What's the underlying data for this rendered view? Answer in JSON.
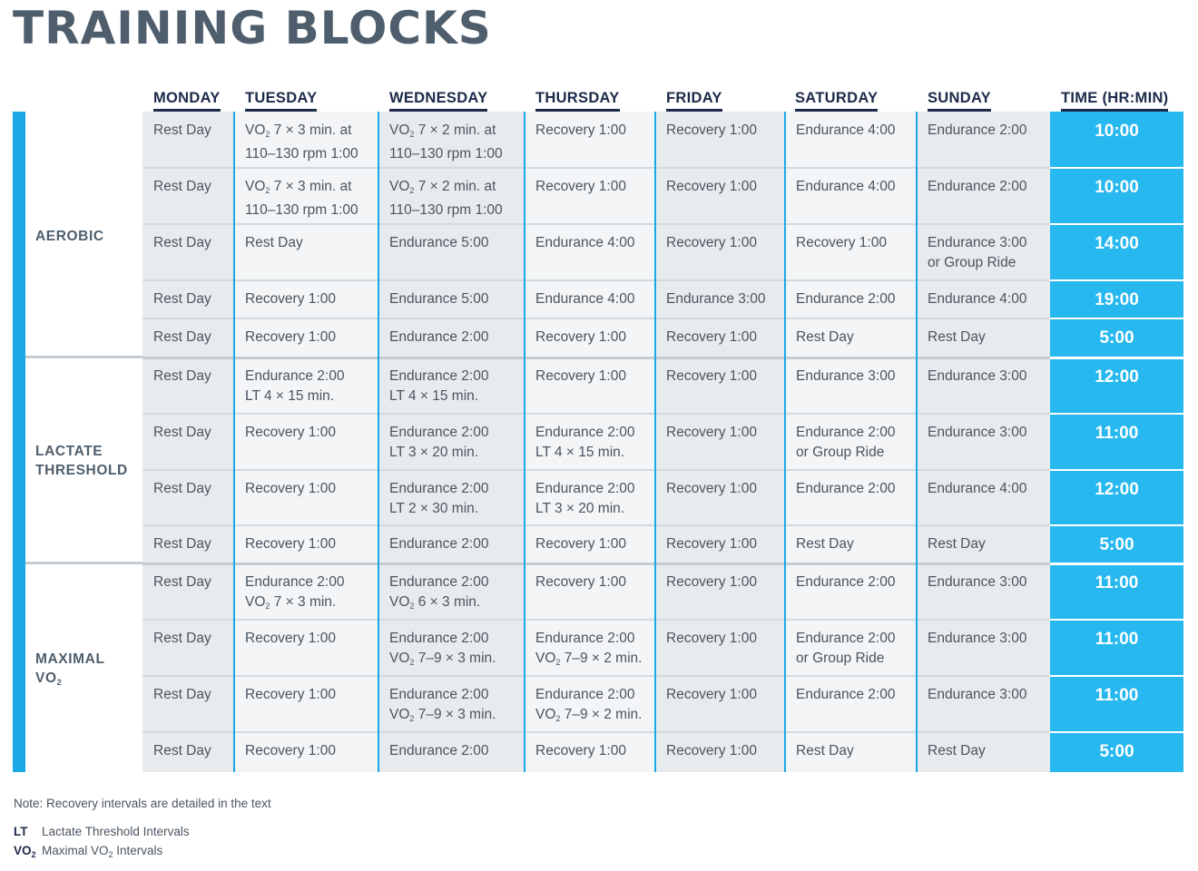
{
  "title": "TRAINING BLOCKS",
  "headers": [
    "MONDAY",
    "TUESDAY",
    "WEDNESDAY",
    "THURSDAY",
    "FRIDAY",
    "SATURDAY",
    "SUNDAY",
    "TIME (HR:MIN)"
  ],
  "blocks": [
    {
      "name": "AEROBIC",
      "rows": [
        0,
        1,
        2,
        3,
        4
      ]
    },
    {
      "name": "LACTATE\nTHRESHOLD",
      "rows": [
        5,
        6,
        7,
        8
      ]
    },
    {
      "name": "MAXIMAL\nVO_2",
      "rows": [
        9,
        10,
        11,
        12
      ]
    }
  ],
  "rows": [
    {
      "cells": [
        "Rest Day",
        "VO_2 7 × 3 min. at\n110–130 rpm 1:00",
        "VO_2 7 × 2 min. at\n110–130 rpm 1:00",
        "Recovery 1:00",
        "Recovery 1:00",
        "Endurance 4:00",
        "Endurance 2:00"
      ],
      "time": "10:00"
    },
    {
      "cells": [
        "Rest Day",
        "VO_2 7 × 3 min. at\n110–130 rpm 1:00",
        "VO_2 7 × 2 min. at\n110–130 rpm 1:00",
        "Recovery 1:00",
        "Recovery 1:00",
        "Endurance 4:00",
        "Endurance 2:00"
      ],
      "time": "10:00"
    },
    {
      "cells": [
        "Rest Day",
        "Rest Day",
        "Endurance 5:00",
        "Endurance 4:00",
        "Recovery 1:00",
        "Recovery 1:00",
        "Endurance 3:00\nor Group Ride"
      ],
      "time": "14:00"
    },
    {
      "cells": [
        "Rest Day",
        "Recovery 1:00",
        "Endurance 5:00",
        "Endurance 4:00",
        "Endurance 3:00",
        "Endurance 2:00",
        "Endurance 4:00"
      ],
      "time": "19:00"
    },
    {
      "cells": [
        "Rest Day",
        "Recovery 1:00",
        "Endurance 2:00",
        "Recovery 1:00",
        "Recovery 1:00",
        "Rest Day",
        "Rest Day"
      ],
      "time": "5:00"
    },
    {
      "cells": [
        "Rest Day",
        "Endurance 2:00\nLT 4 × 15 min.",
        "Endurance 2:00\nLT 4 × 15 min.",
        "Recovery 1:00",
        "Recovery 1:00",
        "Endurance 3:00",
        "Endurance 3:00"
      ],
      "time": "12:00"
    },
    {
      "cells": [
        "Rest Day",
        "Recovery 1:00",
        "Endurance 2:00\nLT 3 × 20 min.",
        "Endurance 2:00\nLT 4 × 15 min.",
        "Recovery 1:00",
        "Endurance 2:00\nor Group Ride",
        "Endurance 3:00"
      ],
      "time": "11:00"
    },
    {
      "cells": [
        "Rest Day",
        "Recovery 1:00",
        "Endurance 2:00\nLT 2 × 30 min.",
        "Endurance 2:00\nLT 3 × 20 min.",
        "Recovery 1:00",
        "Endurance 2:00",
        "Endurance 4:00"
      ],
      "time": "12:00"
    },
    {
      "cells": [
        "Rest Day",
        "Recovery 1:00",
        "Endurance 2:00",
        "Recovery 1:00",
        "Recovery 1:00",
        "Rest Day",
        "Rest Day"
      ],
      "time": "5:00"
    },
    {
      "cells": [
        "Rest Day",
        "Endurance 2:00\nVO_2 7 × 3 min.",
        "Endurance 2:00\nVO_2 6 × 3 min.",
        "Recovery 1:00",
        "Recovery 1:00",
        "Endurance 2:00",
        "Endurance 3:00"
      ],
      "time": "11:00"
    },
    {
      "cells": [
        "Rest Day",
        "Recovery 1:00",
        "Endurance 2:00\nVO_2 7–9 × 3 min.",
        "Endurance 2:00\nVO_2 7–9 × 2 min.",
        "Recovery 1:00",
        "Endurance 2:00\nor Group Ride",
        "Endurance 3:00"
      ],
      "time": "11:00"
    },
    {
      "cells": [
        "Rest Day",
        "Recovery 1:00",
        "Endurance 2:00\nVO_2 7–9 × 3 min.",
        "Endurance 2:00\nVO_2 7–9 × 2 min.",
        "Recovery 1:00",
        "Endurance 2:00",
        "Endurance 3:00"
      ],
      "time": "11:00"
    },
    {
      "cells": [
        "Rest Day",
        "Recovery 1:00",
        "Endurance 2:00",
        "Recovery 1:00",
        "Recovery 1:00",
        "Rest Day",
        "Rest Day"
      ],
      "time": "5:00"
    }
  ],
  "note": "Note: Recovery intervals are detailed in the text",
  "legend": [
    {
      "abbr": "LT",
      "text": "Lactate Threshold Intervals"
    },
    {
      "abbr": "VO_2",
      "text": "Maximal VO_2 Intervals"
    }
  ],
  "colors": {
    "accent": "#1aa9e6",
    "time_column": "#27b8ef",
    "header_text": "#1c2a4a",
    "title_text": "#4e5e6c"
  }
}
